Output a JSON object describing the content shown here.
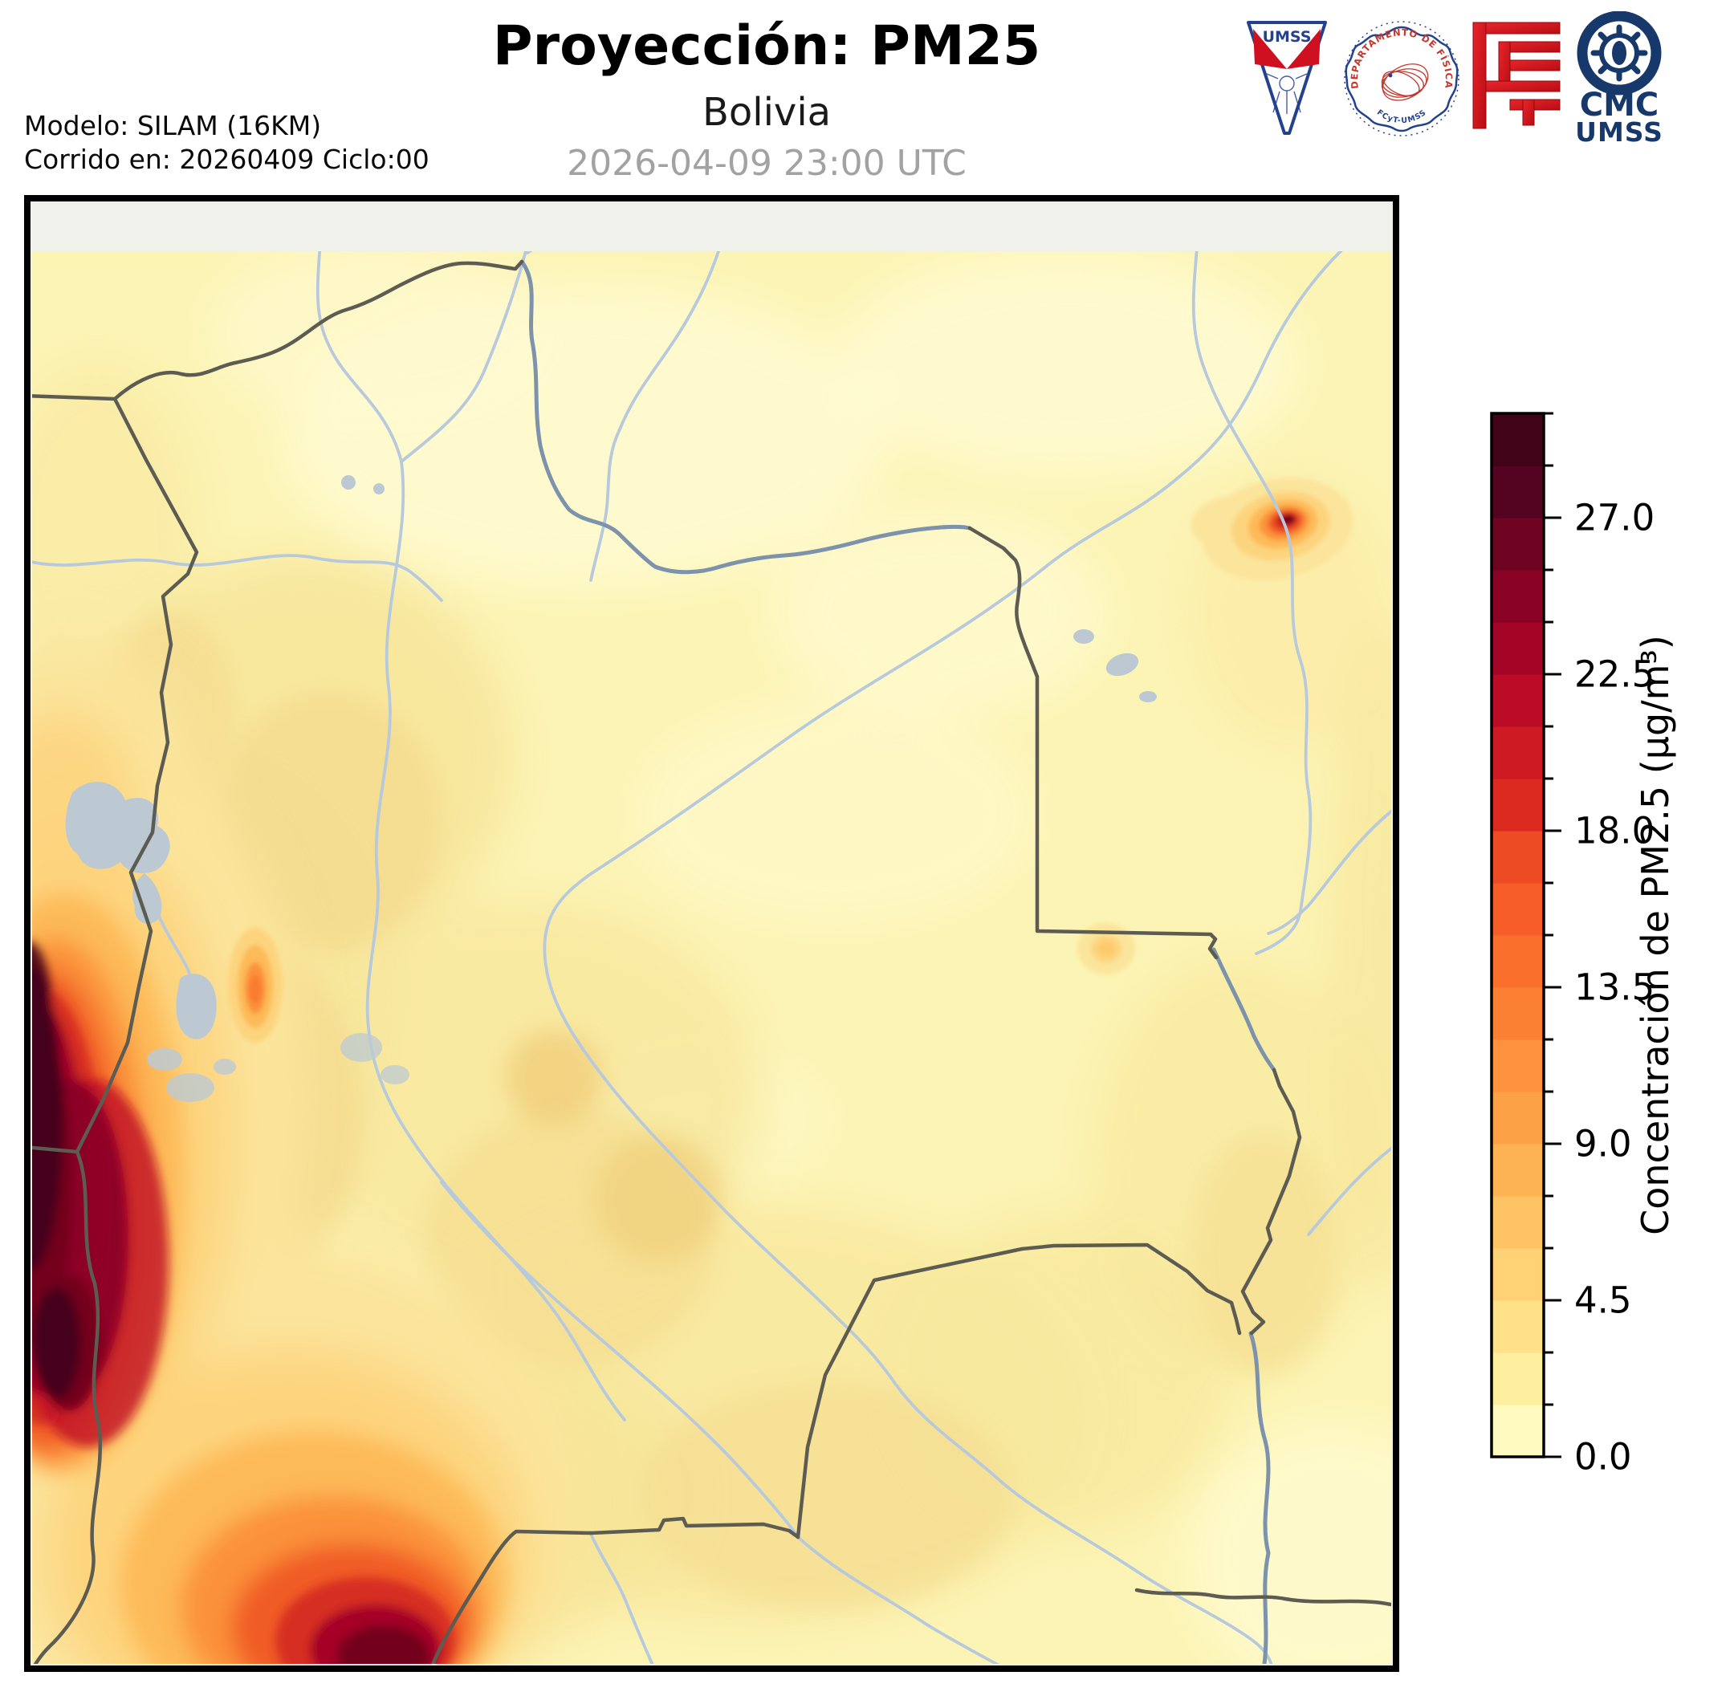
{
  "header": {
    "title": "Proyección: PM25",
    "subtitle": "Bolivia",
    "timestamp": "2026-04-09 23:00 UTC",
    "model_line": "Modelo: SILAM (16KM)",
    "run_line": "Corrido en: 20260409 Ciclo:00"
  },
  "logos": {
    "umss_text": "UMSS",
    "fisica_arc_top": "DEPARTAMENTO DE FÍSICA",
    "fisica_arc_bottom": "FCyT-UMSS",
    "cmc_line1": "CMC",
    "cmc_line2": "UMSS"
  },
  "colorbar": {
    "label": "Concentración de PM2.5 (µg/m³)",
    "value_min": 0,
    "value_max": 30,
    "major_ticks": [
      {
        "value": 0.0,
        "label": "0.0"
      },
      {
        "value": 4.5,
        "label": "4.5"
      },
      {
        "value": 9.0,
        "label": "9.0"
      },
      {
        "value": 13.5,
        "label": "13.5"
      },
      {
        "value": 18.0,
        "label": "18.0"
      },
      {
        "value": 22.5,
        "label": "22.5"
      },
      {
        "value": 27.0,
        "label": "27.0"
      }
    ],
    "minor_tick_step": 1.5,
    "segment_step": 1.5,
    "segment_colors_bottom_to_top": [
      "#FFFBC0",
      "#FEEF9E",
      "#FEE189",
      "#FED275",
      "#FEC363",
      "#FDB253",
      "#FDA147",
      "#FD913D",
      "#FC8034",
      "#FB6F2C",
      "#F65D28",
      "#ED4B23",
      "#DD2A21",
      "#CD1A23",
      "#BC0B26",
      "#A40426",
      "#8A0326",
      "#6E0422",
      "#540420",
      "#400318"
    ]
  },
  "map": {
    "background_color": "#FCF4B5",
    "margin_color": "#F1F1EB",
    "river_color": "#B7C9DC",
    "border_river_color": "#7D93AB",
    "country_border_color": "#5C5C52",
    "lake_color": "#BCC9D3"
  },
  "chart_data": {
    "type": "heatmap",
    "title": "Proyección: PM25",
    "subtitle": "Bolivia",
    "timestamp_utc": "2026-04-09 23:00 UTC",
    "model": "SILAM (16KM)",
    "run": "20260409 Ciclo:00",
    "variable": "Concentración de PM2.5",
    "units": "µg/m³",
    "colormap": "YlOrRd extendido (amarillo pálido → rojo oscuro)",
    "colorbar_range": [
      0,
      30
    ],
    "colorbar_ticks": [
      0.0,
      4.5,
      9.0,
      13.5,
      18.0,
      22.5,
      27.0
    ],
    "legend_position": "right",
    "features": [
      {
        "name": "fondo general del dominio (Bolivia y alrededores)",
        "pm25_approx": "1.5 - 6"
      },
      {
        "name": "franja andina occidental junto a la frontera con Chile (borde oeste del mapa, mitad sur)",
        "pm25_approx": "18 - 30+",
        "shape": "banda alargada norte-sur con núcleo rojo oscuro"
      },
      {
        "name": "extensión del máximo hacia el borde inferior izquierdo",
        "pm25_approx": "12 - 30",
        "shape": "lóbulo hacia el sureste en la esquina inferior"
      },
      {
        "name": "hotspot puntual noreste (junto a río, lado brasileño)",
        "pm25_approx": "24 - 30",
        "shape": "mancha compacta con anillos concéntricos"
      },
      {
        "name": "hotspot alargado región La Paz / altiplano norte",
        "pm25_approx": "7.5 - 12",
        "shape": "óvalo vertical pequeño"
      },
      {
        "name": "mancha débil centro-este (bajo el límite departamental)",
        "pm25_approx": "6 - 7.5",
        "shape": "punto difuso"
      }
    ],
    "map_overlays": [
      "fronteras nacionales/departamentales en gris oscuro",
      "ríos en celeste",
      "lagos Titicaca y Poopó en gris azulado"
    ]
  }
}
